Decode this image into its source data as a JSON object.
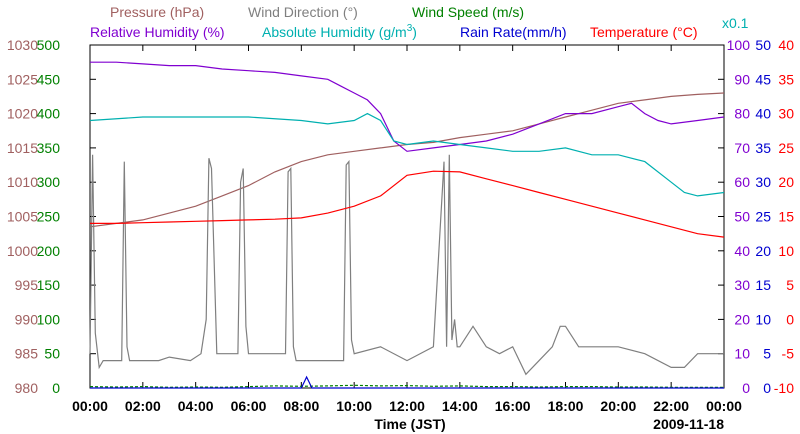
{
  "chart_data": {
    "type": "line",
    "titles": {
      "pressure": "Pressure (hPa)",
      "wind_direction": "Wind Direction (°)",
      "wind_speed": "Wind Speed (m/s)",
      "relative_humidity": "Relative Humidity (%)",
      "absolute_humidity": "Absolute Humidity (g/m",
      "abs_hum_sup": "3",
      "abs_hum_close": ")",
      "rain_rate": "Rain Rate(mm/h)",
      "temperature": "Temperature (°C)",
      "rain_scale_note": "x0.1"
    },
    "xlabel": "Time (JST)",
    "date": "2009-11-18",
    "x_ticks": [
      "00:00",
      "02:00",
      "04:00",
      "06:00",
      "08:00",
      "10:00",
      "12:00",
      "14:00",
      "16:00",
      "18:00",
      "20:00",
      "22:00",
      "00:00"
    ],
    "x_range_hours": [
      0,
      24
    ],
    "colors": {
      "pressure": "#a06060",
      "wind_direction": "#7f7f7f",
      "wind_speed": "#008000",
      "relative_humidity": "#8000d0",
      "absolute_humidity": "#00b0b0",
      "rain_rate": "#0000d0",
      "temperature": "#ff0000"
    },
    "axes": {
      "pressure": {
        "range": [
          980,
          1030
        ],
        "ticks": [
          "1030",
          "1025",
          "1020",
          "1015",
          "1010",
          "1005",
          "1000",
          "995",
          "990",
          "985",
          "980"
        ]
      },
      "wind_direction": {
        "range": [
          0,
          500
        ],
        "ticks": [
          "500",
          "450",
          "400",
          "350",
          "300",
          "250",
          "200",
          "150",
          "100",
          "50",
          "0"
        ]
      },
      "relative_humidity": {
        "range": [
          0,
          100
        ],
        "ticks": [
          "100",
          "90",
          "80",
          "70",
          "60",
          "50",
          "40",
          "30",
          "20",
          "10",
          "0"
        ]
      },
      "rain_rate": {
        "range": [
          0,
          50
        ],
        "ticks": [
          "50",
          "45",
          "40",
          "35",
          "30",
          "25",
          "20",
          "15",
          "10",
          "5",
          "0"
        ]
      },
      "temperature": {
        "range": [
          -10,
          40
        ],
        "ticks": [
          "40",
          "35",
          "30",
          "25",
          "20",
          "15",
          "10",
          "5",
          "0",
          "-5",
          "-10"
        ]
      }
    },
    "series": [
      {
        "name": "Pressure",
        "key": "pressure",
        "axis": "pressure",
        "x": [
          0,
          1,
          2,
          3,
          4,
          5,
          6,
          7,
          8,
          9,
          10,
          11,
          12,
          13,
          14,
          15,
          16,
          17,
          18,
          19,
          20,
          21,
          22,
          23,
          24
        ],
        "values": [
          1003.5,
          1004,
          1004.5,
          1005.5,
          1006.5,
          1008,
          1009.5,
          1011.5,
          1013,
          1014,
          1014.5,
          1015,
          1015.5,
          1015.8,
          1016.5,
          1017,
          1017.5,
          1018.5,
          1019.5,
          1020.5,
          1021.5,
          1022,
          1022.5,
          1022.8,
          1023
        ]
      },
      {
        "name": "Wind Direction",
        "key": "wind_direction",
        "axis": "wind_direction",
        "x": [
          0,
          0.1,
          0.2,
          0.35,
          0.5,
          1.2,
          1.3,
          1.4,
          1.5,
          2.6,
          3,
          3.8,
          4.2,
          4.4,
          4.5,
          4.6,
          4.8,
          5.6,
          5.7,
          5.8,
          5.9,
          6,
          7,
          7.4,
          7.5,
          7.6,
          7.7,
          7.8,
          8,
          9.6,
          9.7,
          9.8,
          9.9,
          10,
          11,
          12,
          13,
          13.4,
          13.5,
          13.6,
          13.7,
          13.8,
          13.9,
          14,
          14.5,
          15,
          15.5,
          16,
          16.5,
          17,
          17.5,
          17.8,
          18,
          18.5,
          19,
          20,
          21,
          22,
          22.5,
          23,
          23.5,
          24
        ],
        "values": [
          50,
          340,
          80,
          30,
          40,
          40,
          330,
          60,
          40,
          40,
          45,
          40,
          50,
          100,
          335,
          320,
          50,
          50,
          300,
          320,
          90,
          50,
          50,
          50,
          315,
          320,
          60,
          40,
          40,
          40,
          325,
          330,
          70,
          50,
          60,
          40,
          60,
          330,
          60,
          340,
          70,
          100,
          60,
          60,
          90,
          60,
          50,
          60,
          20,
          40,
          60,
          90,
          90,
          60,
          60,
          60,
          50,
          30,
          30,
          50,
          50,
          50
        ]
      },
      {
        "name": "Wind Speed",
        "key": "wind_speed",
        "axis": "wind_direction",
        "x": [
          0,
          1,
          2,
          3,
          4,
          5,
          6,
          7,
          8,
          9,
          10,
          11,
          12,
          13,
          14,
          15,
          16,
          17,
          18,
          19,
          20,
          21,
          22,
          23,
          24
        ],
        "values": [
          2,
          1.5,
          2,
          1,
          1.5,
          1,
          2,
          3,
          2.5,
          3,
          4,
          3,
          3.5,
          2.5,
          3,
          2,
          2,
          1.5,
          2,
          2,
          1.5,
          1.5,
          1,
          1,
          1
        ]
      },
      {
        "name": "Relative Humidity",
        "key": "relative_humidity",
        "axis": "relative_humidity",
        "x": [
          0,
          1,
          2,
          3,
          4,
          5,
          6,
          7,
          8,
          9,
          9.5,
          10,
          10.5,
          11,
          11.5,
          12,
          13,
          14,
          15,
          16,
          17,
          18,
          18.5,
          19,
          20,
          20.5,
          21,
          21.5,
          22,
          23,
          24
        ],
        "values": [
          95,
          95,
          94.5,
          94,
          94,
          93,
          92.5,
          92,
          91,
          90,
          88,
          86,
          84,
          80,
          72,
          69,
          70,
          71,
          72,
          74,
          77,
          80,
          80,
          80,
          82,
          83,
          80,
          78,
          77,
          78,
          79
        ]
      },
      {
        "name": "Absolute Humidity",
        "key": "absolute_humidity",
        "axis": "relative_humidity",
        "x": [
          0,
          2,
          4,
          6,
          8,
          9,
          10,
          10.5,
          11,
          11.5,
          12,
          13,
          14,
          15,
          16,
          17,
          18,
          19,
          20,
          21,
          22,
          22.5,
          23,
          24
        ],
        "values": [
          78,
          79,
          79,
          79,
          78,
          77,
          78,
          80,
          78,
          72,
          71,
          72,
          71,
          70,
          69,
          69,
          70,
          68,
          68,
          66,
          60,
          57,
          56,
          57
        ]
      },
      {
        "name": "Rain Rate",
        "key": "rain_rate",
        "axis": "rain_rate",
        "x": [
          0,
          8,
          8.1,
          8.2,
          8.3,
          8.4,
          24
        ],
        "values": [
          0,
          0,
          0.8,
          1.6,
          0.8,
          0,
          0
        ]
      },
      {
        "name": "Temperature",
        "key": "temperature",
        "axis": "temperature",
        "x": [
          0,
          1,
          2,
          3,
          4,
          5,
          6,
          7,
          8,
          9,
          10,
          11,
          12,
          13,
          14,
          15,
          16,
          17,
          18,
          19,
          20,
          21,
          22,
          23,
          24
        ],
        "values": [
          14,
          14,
          14.1,
          14.2,
          14.3,
          14.4,
          14.5,
          14.6,
          14.8,
          15.5,
          16.5,
          18,
          21,
          21.6,
          21.5,
          20.5,
          19.5,
          18.5,
          17.5,
          16.5,
          15.5,
          14.5,
          13.5,
          12.5,
          12
        ]
      }
    ]
  }
}
